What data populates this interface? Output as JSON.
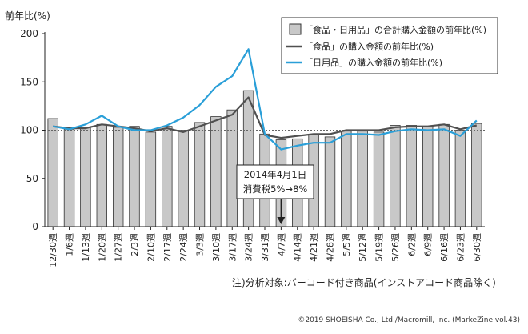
{
  "chart_data": {
    "type": "bar",
    "ylabel": "前年比(%)",
    "ylim": [
      0,
      200
    ],
    "yticks": [
      0,
      50,
      100,
      150,
      200
    ],
    "reference_line": 100,
    "categories": [
      "12/30週",
      "1/6週",
      "1/13週",
      "1/20週",
      "1/27週",
      "2/3週",
      "2/10週",
      "2/17週",
      "2/24週",
      "3/3週",
      "3/10週",
      "3/17週",
      "3/24週",
      "3/31週",
      "4/7週",
      "4/14週",
      "4/21週",
      "4/28週",
      "5/5週",
      "5/12週",
      "5/19週",
      "5/26週",
      "6/2週",
      "6/9週",
      "6/16週",
      "6/23週",
      "6/30週"
    ],
    "series": [
      {
        "name": "「食品・日用品」の合計購入金額の前年比(%)",
        "kind": "bar",
        "values": [
          112,
          101,
          103,
          106,
          103,
          104,
          98,
          104,
          100,
          108,
          114,
          121,
          141,
          96,
          90,
          91,
          95,
          93,
          99,
          99,
          98,
          105,
          105,
          104,
          106,
          100,
          107
        ]
      },
      {
        "name": "「食品」の購入金額の前年比(%)",
        "kind": "line",
        "values": [
          104,
          102,
          102,
          106,
          104,
          102,
          99,
          102,
          98,
          104,
          110,
          116,
          134,
          95,
          92,
          94,
          96,
          96,
          100,
          100,
          100,
          103,
          104,
          104,
          106,
          101,
          105
        ]
      },
      {
        "name": "「日用品」の購入金額の前年比(%)",
        "kind": "line",
        "values": [
          104,
          101,
          106,
          115,
          104,
          100,
          100,
          105,
          113,
          126,
          145,
          156,
          184,
          96,
          80,
          84,
          87,
          87,
          96,
          96,
          95,
          99,
          101,
          100,
          101,
          94,
          110
        ]
      }
    ],
    "annotation": {
      "lines": [
        "2014年4月1日",
        "消費税5%→8%"
      ],
      "category": "4/7週"
    }
  },
  "colors": {
    "bar_fill": "#c8c8c8",
    "bar_stroke": "#333333",
    "food_line": "#505050",
    "daily_line": "#2a9fd8",
    "axis": "#222222"
  },
  "note": "注)分析対象:バーコード付き商品(インストアコード商品除く)",
  "copyright": "©2019 SHOEISHA Co., Ltd./Macromill, Inc. (MarkeZine vol.43)"
}
